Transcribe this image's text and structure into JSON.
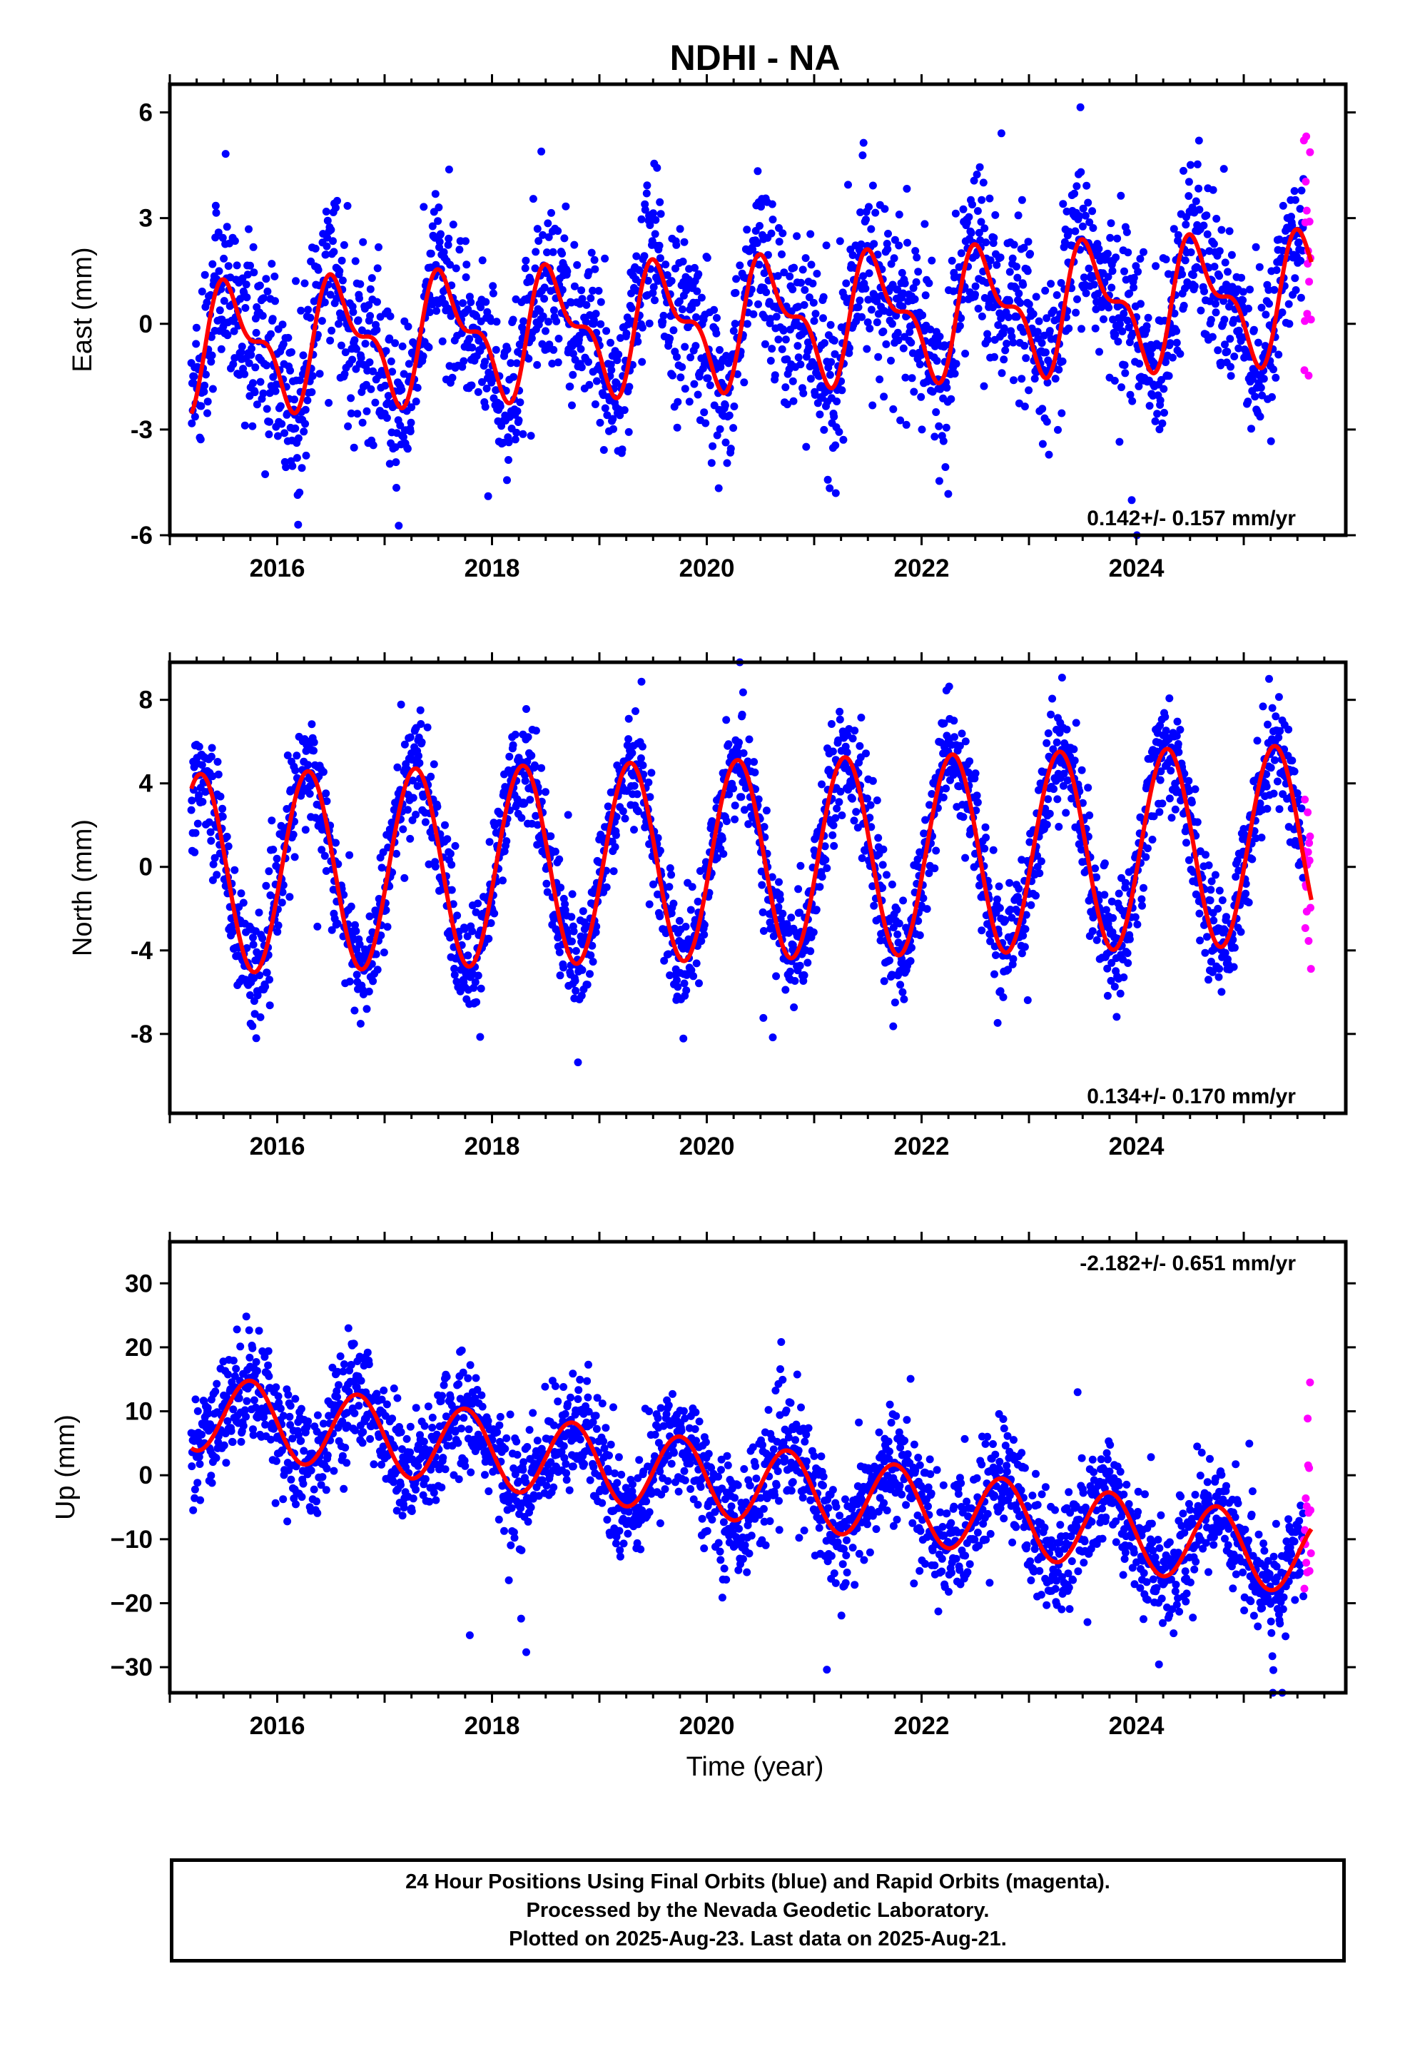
{
  "title": "NDHI - NA",
  "xlabel": "Time (year)",
  "footer": {
    "line1": "24 Hour Positions Using Final Orbits (blue) and Rapid Orbits (magenta).",
    "line2": "Processed by the Nevada Geodetic Laboratory.",
    "line3": "Plotted on 2025-Aug-23. Last data on 2025-Aug-21."
  },
  "colors": {
    "final": "#0000ff",
    "rapid": "#ff00ff",
    "model": "#ff0000",
    "axis": "#000000"
  },
  "chart_data": [
    {
      "type": "scatter",
      "panel": "east",
      "ylabel": "East (mm)",
      "rate_label": "0.142+/- 0.157 mm/yr",
      "rate_position": "bottom-right",
      "xlim": [
        2015.0,
        2025.95
      ],
      "ylim": [
        -6,
        6.8
      ],
      "x_ticks": [
        2016,
        2018,
        2020,
        2022,
        2024
      ],
      "x_tick_labels": [
        "2016",
        "2018",
        "2020",
        "2022",
        "2024"
      ],
      "y_ticks": [
        -6,
        -3,
        0,
        3,
        6
      ],
      "y_tick_labels": [
        "-6",
        "-3",
        "0",
        "3",
        "6"
      ],
      "grid": false,
      "data_range_years": [
        2015.2,
        2025.63
      ],
      "rapid_start_year": 2025.56,
      "model": {
        "ref_year": 2020.0,
        "offset": 0.0,
        "rate_mm_per_yr": 0.142,
        "annual_cos": -1.3,
        "annual_sin": -0.75,
        "semiannual_cos": 0.6,
        "semiannual_sin": -0.45
      },
      "scatter_sigma_mm": 1.2,
      "series": [
        {
          "name": "Final Orbits (blue)",
          "color": "#0000ff"
        },
        {
          "name": "Rapid Orbits (magenta)",
          "color": "#ff00ff"
        }
      ]
    },
    {
      "type": "scatter",
      "panel": "north",
      "ylabel": "North (mm)",
      "rate_label": "0.134+/- 0.170 mm/yr",
      "rate_position": "bottom-right",
      "xlim": [
        2015.0,
        2025.95
      ],
      "ylim": [
        -11.8,
        9.8
      ],
      "x_ticks": [
        2016,
        2018,
        2020,
        2022,
        2024
      ],
      "x_tick_labels": [
        "2016",
        "2018",
        "2020",
        "2022",
        "2024"
      ],
      "y_ticks": [
        -8,
        -4,
        0,
        4,
        8
      ],
      "y_tick_labels": [
        "-8",
        "-4",
        "0",
        "4",
        "8"
      ],
      "grid": false,
      "data_range_years": [
        2015.2,
        2025.63
      ],
      "rapid_start_year": 2025.56,
      "model": {
        "ref_year": 2020.0,
        "offset": 0.3,
        "rate_mm_per_yr": 0.134,
        "annual_cos": -1.1,
        "annual_sin": 4.65,
        "semiannual_cos": 0.0,
        "semiannual_sin": 0.0
      },
      "scatter_sigma_mm": 1.3,
      "series": [
        {
          "name": "Final Orbits (blue)",
          "color": "#0000ff"
        },
        {
          "name": "Rapid Orbits (magenta)",
          "color": "#ff00ff"
        }
      ]
    },
    {
      "type": "scatter",
      "panel": "up",
      "ylabel": "Up (mm)",
      "rate_label": "-2.182+/- 0.651 mm/yr",
      "rate_position": "top-right",
      "xlim": [
        2015.0,
        2025.95
      ],
      "ylim": [
        -34,
        36.5
      ],
      "x_ticks": [
        2016,
        2018,
        2020,
        2022,
        2024
      ],
      "x_tick_labels": [
        "2016",
        "2018",
        "2020",
        "2022",
        "2024"
      ],
      "y_ticks": [
        -30,
        -20,
        -10,
        0,
        10,
        20,
        30
      ],
      "y_tick_labels": [
        "−30",
        "−20",
        "−10",
        "0",
        "10",
        "20",
        "30"
      ],
      "grid": false,
      "data_range_years": [
        2015.2,
        2025.63
      ],
      "rapid_start_year": 2025.56,
      "model": {
        "ref_year": 2020.0,
        "offset": -0.5,
        "rate_mm_per_yr": -2.182,
        "annual_cos": 0.0,
        "annual_sin": -6.0,
        "semiannual_cos": 0.0,
        "semiannual_sin": 0.0
      },
      "scatter_sigma_mm": 4.5,
      "series": [
        {
          "name": "Final Orbits (blue)",
          "color": "#0000ff"
        },
        {
          "name": "Rapid Orbits (magenta)",
          "color": "#ff00ff"
        }
      ]
    }
  ]
}
